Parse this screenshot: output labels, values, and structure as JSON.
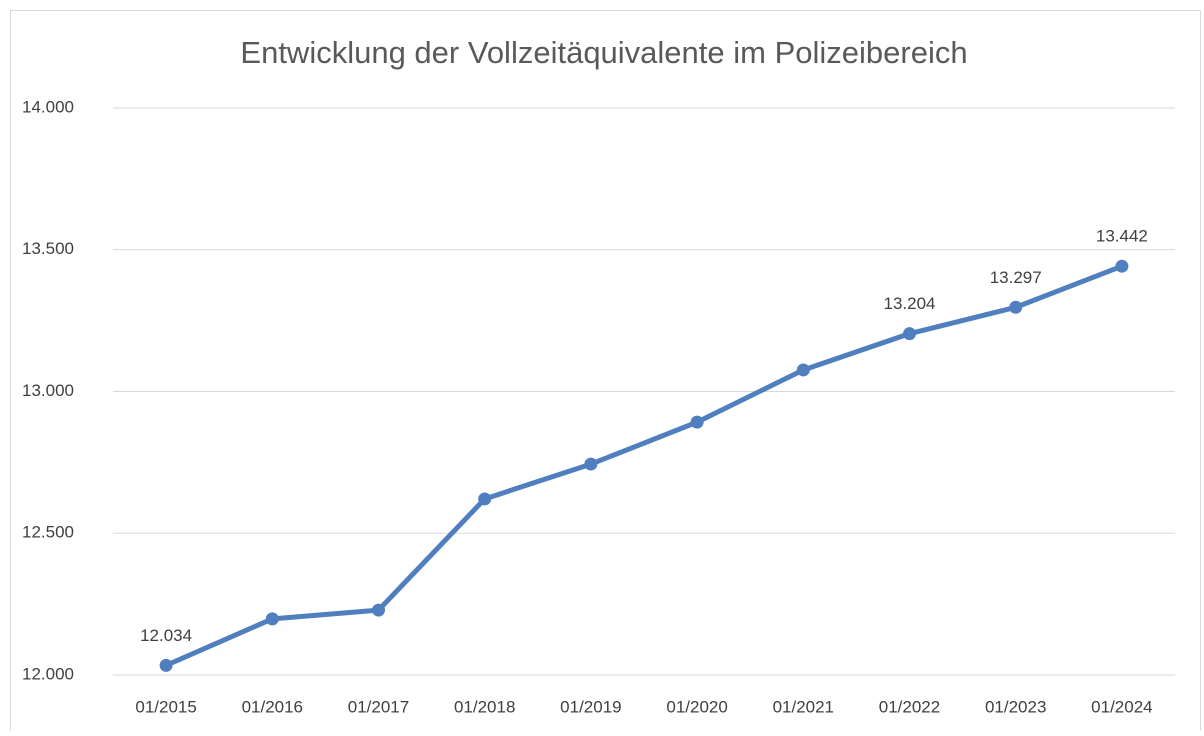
{
  "chart_data": {
    "type": "line",
    "title": "Entwicklung der Vollzeitäquivalente im Polizeibereich",
    "categories": [
      "01/2015",
      "01/2016",
      "01/2017",
      "01/2018",
      "01/2019",
      "01/2020",
      "01/2021",
      "01/2022",
      "01/2023",
      "01/2024"
    ],
    "series": [
      {
        "name": "Vollzeitäquivalente",
        "color": "#4f7fbf",
        "values": [
          12034,
          12198,
          12229,
          12621,
          12744,
          12892,
          13076,
          13204,
          13297,
          13442
        ],
        "value_labels": [
          "12.034",
          null,
          null,
          null,
          null,
          null,
          null,
          "13.204",
          "13.297",
          "13.442"
        ]
      }
    ],
    "ylim": [
      12000,
      14000
    ],
    "yticks": [
      {
        "value": 12000,
        "label": "12.000"
      },
      {
        "value": 12500,
        "label": "12.500"
      },
      {
        "value": 13000,
        "label": "13.000"
      },
      {
        "value": 13500,
        "label": "13.500"
      },
      {
        "value": 14000,
        "label": "14.000"
      }
    ],
    "grid": true
  }
}
